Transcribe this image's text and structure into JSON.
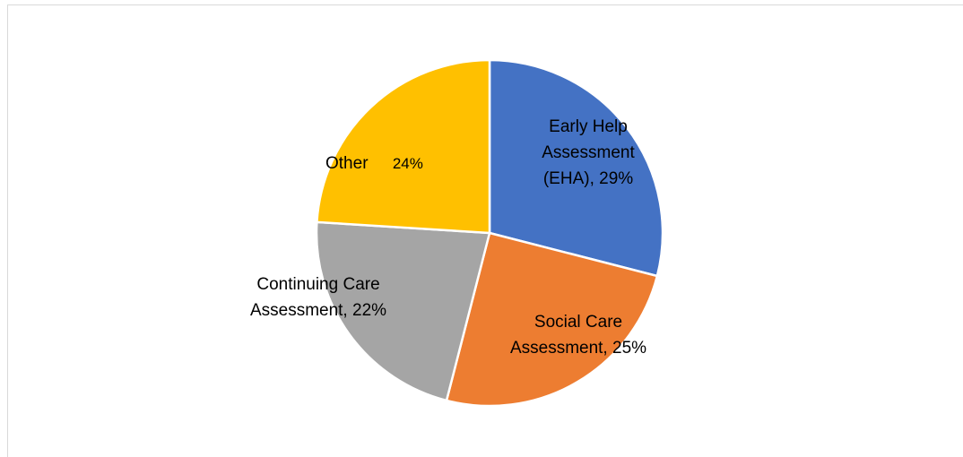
{
  "chart_data": {
    "type": "pie",
    "categories": [
      "Early Help Assessment (EHA),",
      "Social Care Assessment,",
      "Continuing Care Assessment,",
      "Other"
    ],
    "values": [
      29,
      25,
      22,
      24
    ],
    "value_labels": [
      "29%",
      "25%",
      "22%",
      "24%"
    ],
    "colors": [
      "#4472c4",
      "#ed7d31",
      "#a5a5a5",
      "#ffc000"
    ]
  }
}
